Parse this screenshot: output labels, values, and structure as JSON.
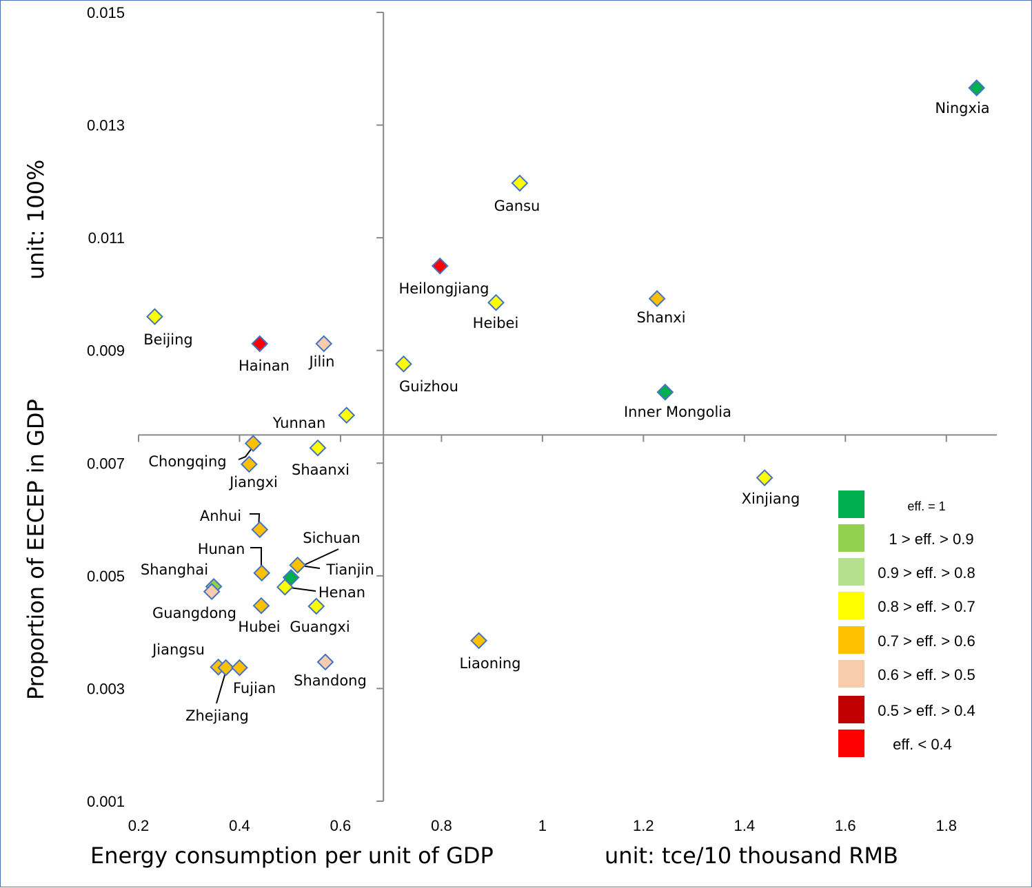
{
  "chart_data": {
    "type": "scatter",
    "title": "",
    "xlabel": "Energy consumption per unit of GDP",
    "xunit": "unit: tce/10 thousand RMB",
    "ylabel": "Proportion of EECEP in GDP",
    "yunit": "unit: 100%",
    "xlim": [
      0.2,
      1.9
    ],
    "ylim": [
      0.001,
      0.015
    ],
    "x_axis_crosses_y": 0.0075,
    "y_axis_crosses_x": 0.685,
    "xticks": [
      0.2,
      0.4,
      0.6,
      0.8,
      1,
      1.2,
      1.4,
      1.6,
      1.8
    ],
    "yticks": [
      0.015,
      0.013,
      0.011,
      0.009,
      0.007,
      0.005,
      0.003,
      0.001
    ],
    "classes": [
      {
        "key": "c1",
        "label": "eff.  = 1",
        "color": "#00b050"
      },
      {
        "key": "c2",
        "label": "1 > eff. > 0.9",
        "color": "#92d050"
      },
      {
        "key": "c3",
        "label": "0.9 > eff. > 0.8",
        "color": "#b6e08e"
      },
      {
        "key": "c4",
        "label": "0.8 > eff. > 0.7",
        "color": "#ffff00"
      },
      {
        "key": "c5",
        "label": "0.7 > eff. > 0.6",
        "color": "#ffc000"
      },
      {
        "key": "c6",
        "label": "0.6 > eff. > 0.5",
        "color": "#f8cbad"
      },
      {
        "key": "c7",
        "label": "0.5 > eff. > 0.4",
        "color": "#c00000"
      },
      {
        "key": "c8",
        "label": "eff. < 0.4",
        "color": "#ff0000"
      }
    ],
    "points": [
      {
        "name": "Ningxia",
        "x": 1.86,
        "y": 0.01366,
        "cls": "c1"
      },
      {
        "name": "Gansu",
        "x": 0.955,
        "y": 0.01197,
        "cls": "c4"
      },
      {
        "name": "Heilongjiang",
        "x": 0.797,
        "y": 0.0105,
        "cls": "c8"
      },
      {
        "name": "Heibei",
        "x": 0.908,
        "y": 0.00985,
        "cls": "c4"
      },
      {
        "name": "Shanxi",
        "x": 1.227,
        "y": 0.00992,
        "cls": "c5"
      },
      {
        "name": "Beijing",
        "x": 0.232,
        "y": 0.0096,
        "cls": "c4"
      },
      {
        "name": "Hainan",
        "x": 0.44,
        "y": 0.00912,
        "cls": "c8"
      },
      {
        "name": "Jilin",
        "x": 0.567,
        "y": 0.00912,
        "cls": "c6"
      },
      {
        "name": "Guizhou",
        "x": 0.725,
        "y": 0.00876,
        "cls": "c4"
      },
      {
        "name": "Inner Mongolia",
        "x": 1.243,
        "y": 0.00826,
        "cls": "c1"
      },
      {
        "name": "Yunnan",
        "x": 0.612,
        "y": 0.00785,
        "cls": "c4"
      },
      {
        "name": "Chongqing",
        "x": 0.427,
        "y": 0.00735,
        "cls": "c5"
      },
      {
        "name": "Jiangxi",
        "x": 0.419,
        "y": 0.00698,
        "cls": "c5"
      },
      {
        "name": "Shaanxi",
        "x": 0.555,
        "y": 0.00727,
        "cls": "c4"
      },
      {
        "name": "Xinjiang",
        "x": 1.44,
        "y": 0.00674,
        "cls": "c4"
      },
      {
        "name": "Anhui",
        "x": 0.44,
        "y": 0.00582,
        "cls": "c5"
      },
      {
        "name": "Hunan",
        "x": 0.444,
        "y": 0.00505,
        "cls": "c5"
      },
      {
        "name": "Sichuan",
        "x": 0.515,
        "y": 0.00519,
        "cls": "c5"
      },
      {
        "name": "Tianjin",
        "x": 0.502,
        "y": 0.00497,
        "cls": "c1"
      },
      {
        "name": "Henan",
        "x": 0.49,
        "y": 0.0048,
        "cls": "c4"
      },
      {
        "name": "Shanghai",
        "x": 0.349,
        "y": 0.00481,
        "cls": "c2"
      },
      {
        "name": "Guangdong",
        "x": 0.345,
        "y": 0.00472,
        "cls": "c6"
      },
      {
        "name": "Hubei",
        "x": 0.443,
        "y": 0.00447,
        "cls": "c5"
      },
      {
        "name": "Guangxi",
        "x": 0.552,
        "y": 0.00446,
        "cls": "c4"
      },
      {
        "name": "Liaoning",
        "x": 0.874,
        "y": 0.00385,
        "cls": "c5"
      },
      {
        "name": "Shandong",
        "x": 0.57,
        "y": 0.00347,
        "cls": "c6"
      },
      {
        "name": "Jiangsu",
        "x": 0.358,
        "y": 0.00338,
        "cls": "c5"
      },
      {
        "name": "Zhejiang",
        "x": 0.373,
        "y": 0.00337,
        "cls": "c5"
      },
      {
        "name": "Fujian",
        "x": 0.4,
        "y": 0.00337,
        "cls": "c5"
      }
    ]
  }
}
